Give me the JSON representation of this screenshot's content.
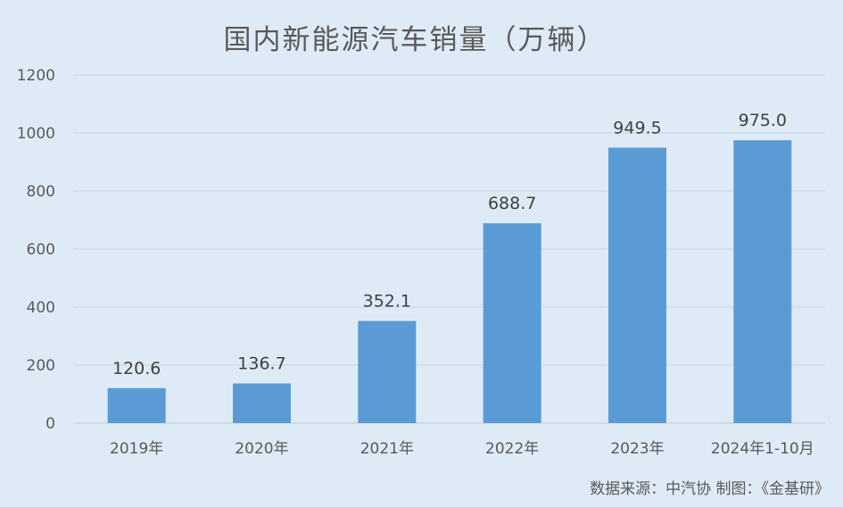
{
  "chart_data": {
    "type": "bar",
    "title": "国内新能源汽车销量（万辆）",
    "categories": [
      "2019年",
      "2020年",
      "2021年",
      "2022年",
      "2023年",
      "2024年1-10月"
    ],
    "values": [
      120.6,
      136.7,
      352.1,
      688.7,
      949.5,
      975.0
    ],
    "data_labels": [
      "120.6",
      "136.7",
      "352.1",
      "688.7",
      "949.5",
      "975.0"
    ],
    "ylim": [
      0,
      1200
    ],
    "yticks": [
      0,
      200,
      400,
      600,
      800,
      1000,
      1200
    ],
    "grid": true,
    "legend": "none",
    "bar_color": "#5b9bd5",
    "source": "数据来源：中汽协 制图：《金基研》"
  }
}
